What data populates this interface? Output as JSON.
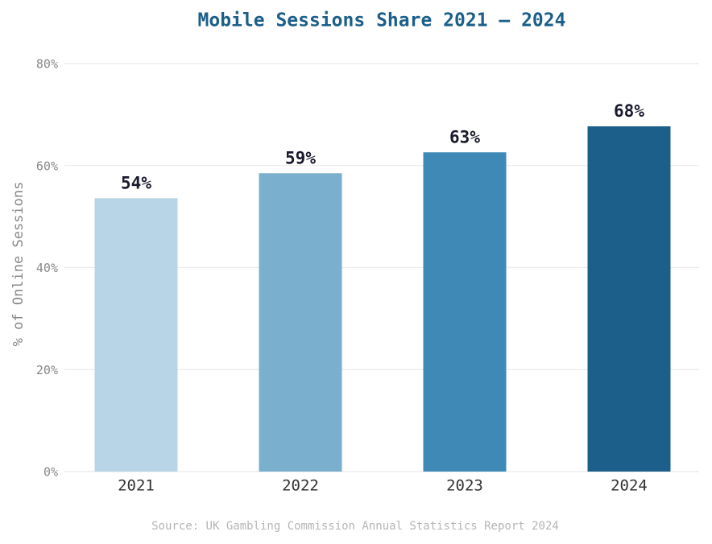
{
  "chart_data": {
    "type": "bar",
    "title": "Mobile Sessions Share  2021 – 2024",
    "y_label": "% of Online Sessions",
    "source": "Source: UK Gambling Commission Annual Statistics Report 2024",
    "categories": [
      "2021",
      "2022",
      "2023",
      "2024"
    ],
    "values": [
      53.6,
      58.5,
      62.6,
      67.7
    ],
    "value_labels": [
      "54%",
      "59%",
      "63%",
      "68%"
    ],
    "colors": [
      "#b8d5e7",
      "#7aafce",
      "#3f89b6",
      "#1b5f8a"
    ],
    "ylim": [
      0,
      80
    ],
    "yticks": [
      {
        "value": 0,
        "label": "0%"
      },
      {
        "value": 20,
        "label": "20%"
      },
      {
        "value": 40,
        "label": "40%"
      },
      {
        "value": 60,
        "label": "60%"
      },
      {
        "value": 80,
        "label": "80%"
      }
    ],
    "grid": true
  }
}
